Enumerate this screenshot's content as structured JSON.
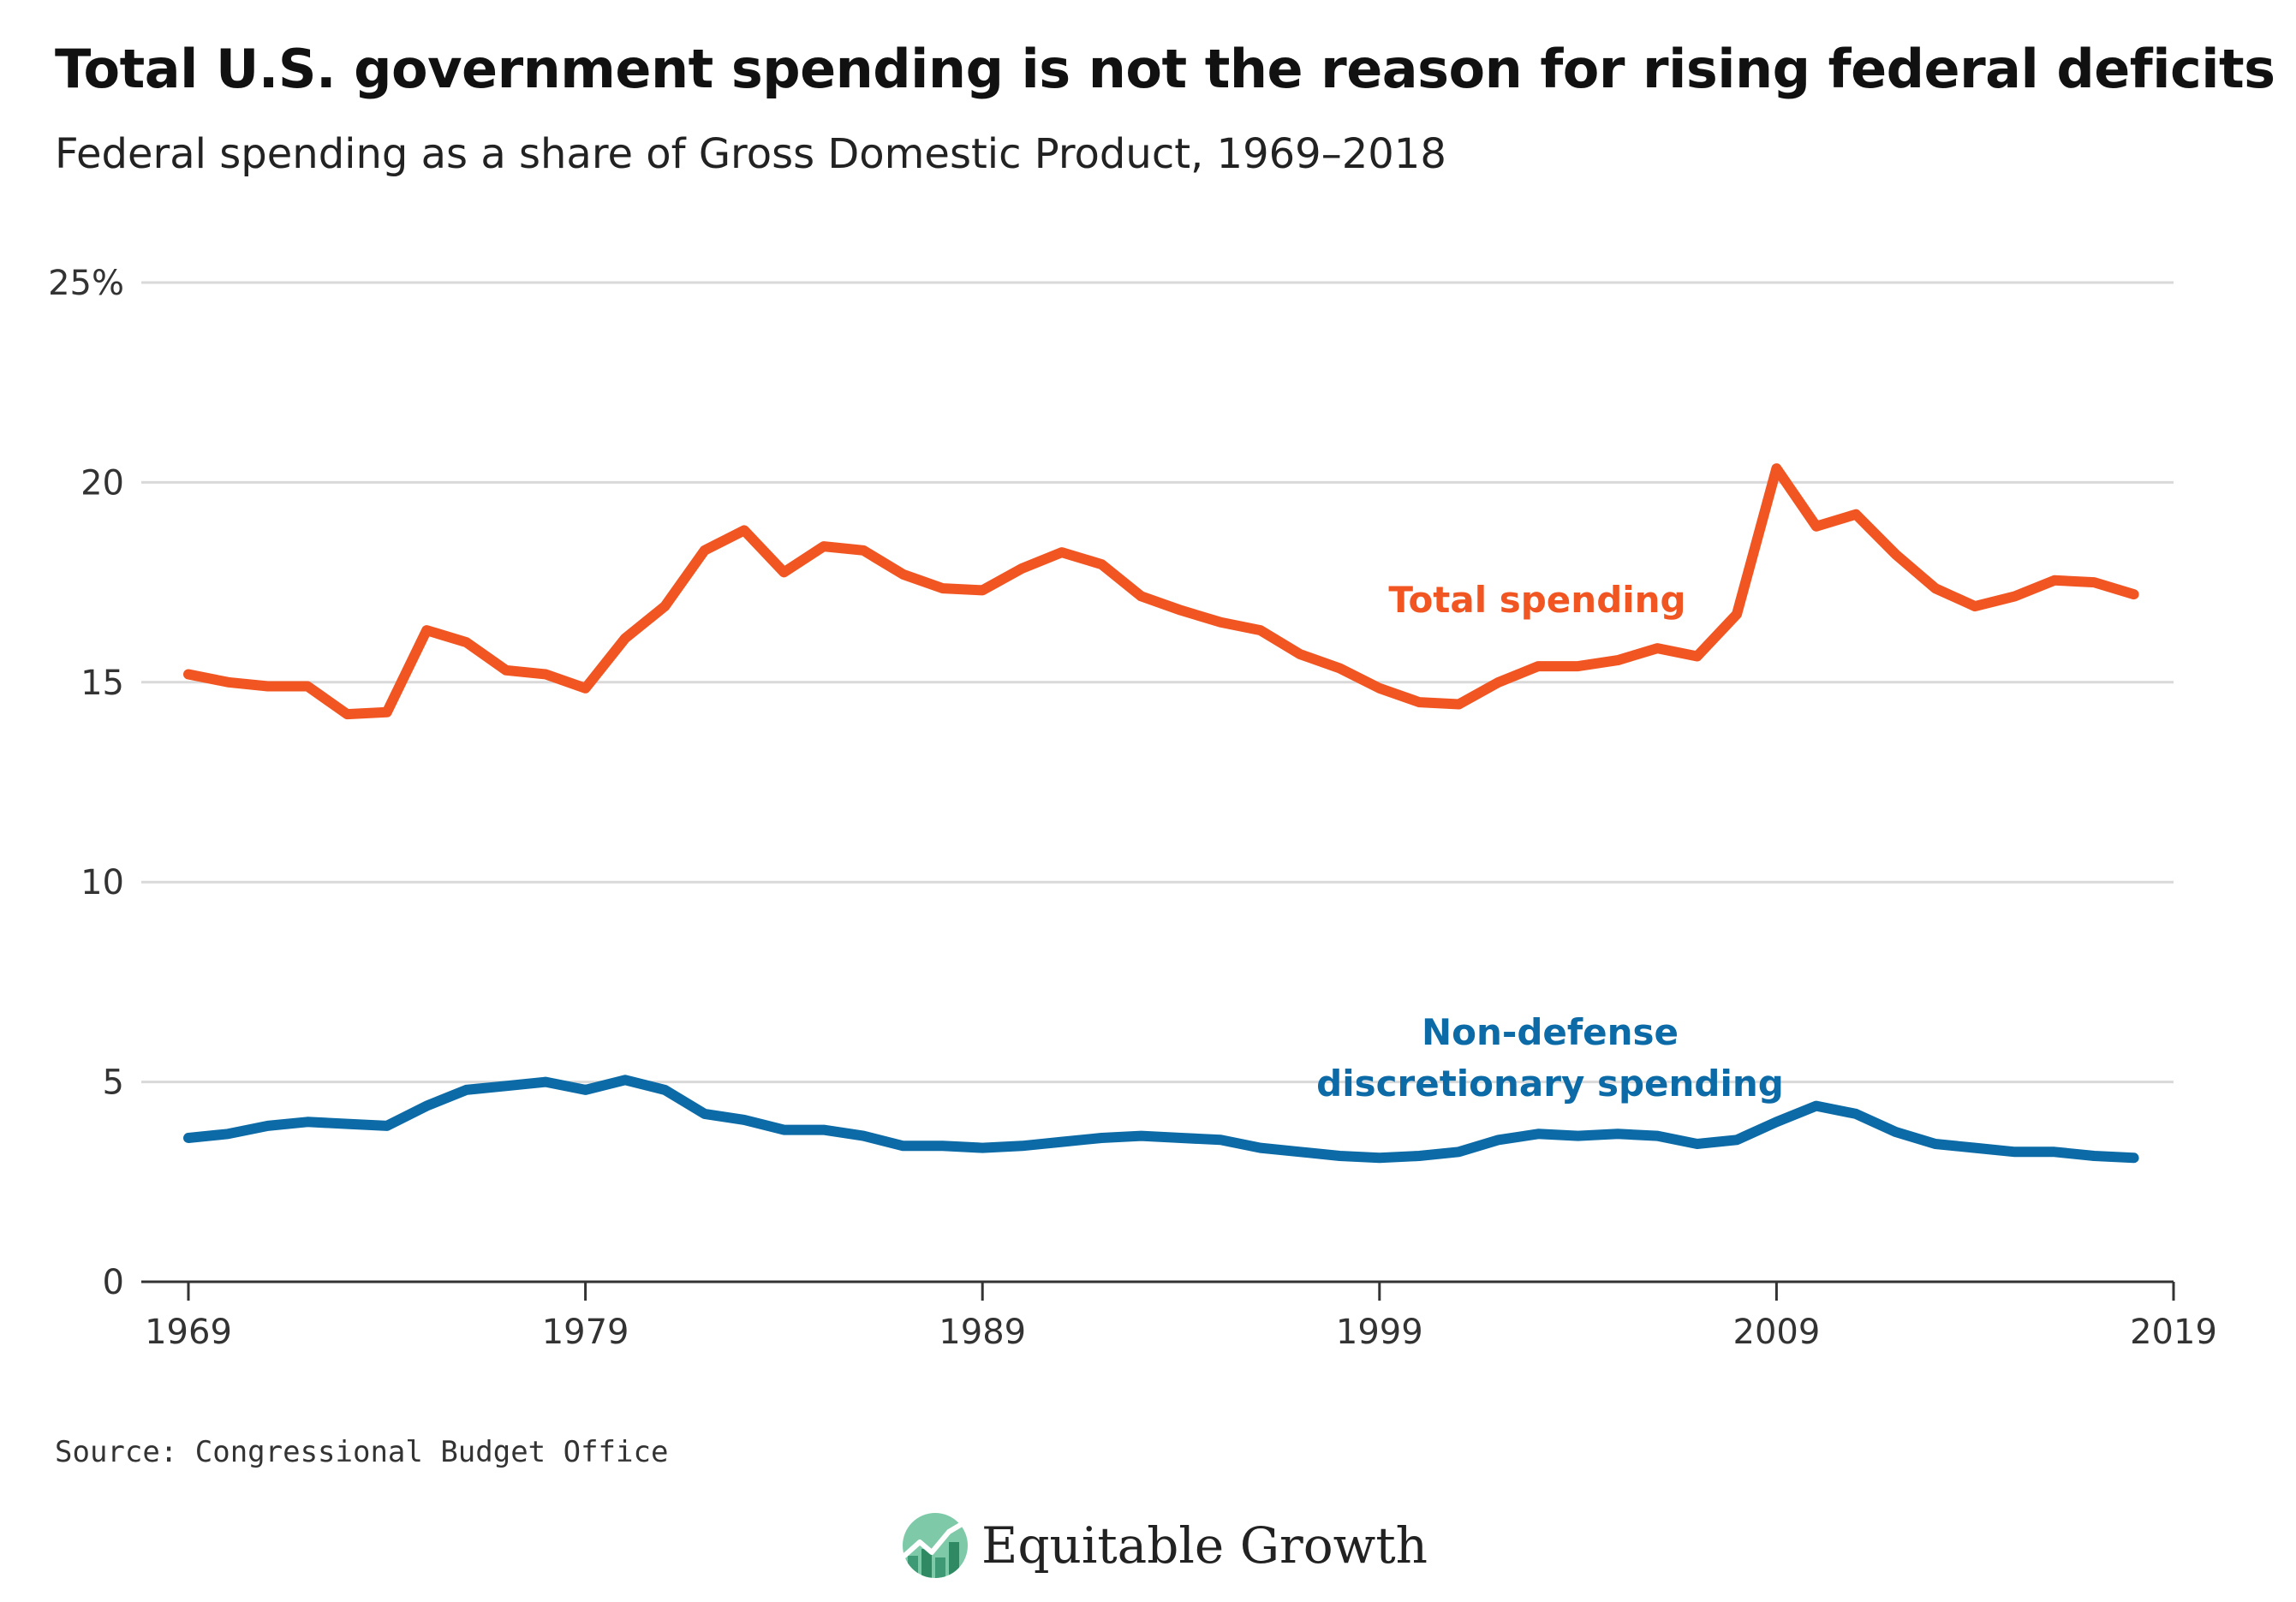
{
  "title": "Total U.S. government spending is not the reason for rising federal deficits",
  "subtitle": "Federal spending as a share of Gross Domestic Product, 1969–2018",
  "source": "Source: Congressional Budget Office",
  "logo": {
    "text": "Equitable Growth",
    "icon": "equitable-growth-logo-icon"
  },
  "colors": {
    "total": "#f15522",
    "nondefense": "#0c6aa6",
    "grid": "#d9d9d9",
    "axis": "#333333"
  },
  "chart_data": {
    "type": "line",
    "title": "Total U.S. government spending is not the reason for rising federal deficits",
    "subtitle": "Federal spending as a share of Gross Domestic Product, 1969–2018",
    "xlabel": "",
    "ylabel": "",
    "xlim": [
      1969,
      2019
    ],
    "ylim": [
      0,
      25
    ],
    "grid": true,
    "legend": "inline labels",
    "x_ticks": [
      1969,
      1979,
      1989,
      1999,
      2009,
      2019
    ],
    "y_ticks": [
      {
        "value": 0,
        "label": "0"
      },
      {
        "value": 5,
        "label": "5"
      },
      {
        "value": 10,
        "label": "10"
      },
      {
        "value": 15,
        "label": "15"
      },
      {
        "value": 20,
        "label": "20"
      },
      {
        "value": 25,
        "label": "25%"
      }
    ],
    "x": [
      1969,
      1970,
      1971,
      1972,
      1973,
      1974,
      1975,
      1976,
      1977,
      1978,
      1979,
      1980,
      1981,
      1982,
      1983,
      1984,
      1985,
      1986,
      1987,
      1988,
      1989,
      1990,
      1991,
      1992,
      1993,
      1994,
      1995,
      1996,
      1997,
      1998,
      1999,
      2000,
      2001,
      2002,
      2003,
      2004,
      2005,
      2006,
      2007,
      2008,
      2009,
      2010,
      2011,
      2012,
      2013,
      2014,
      2015,
      2016,
      2017,
      2018
    ],
    "series": [
      {
        "name": "Total spending",
        "label_lines": [
          "Total spending"
        ],
        "color": "#f15522",
        "values": [
          15.2,
          15.0,
          14.9,
          14.9,
          14.2,
          14.25,
          16.3,
          16.0,
          15.3,
          15.2,
          14.85,
          16.1,
          16.9,
          18.3,
          18.8,
          17.75,
          18.4,
          18.3,
          17.7,
          17.35,
          17.3,
          17.85,
          18.25,
          17.95,
          17.15,
          16.8,
          16.5,
          16.3,
          15.7,
          15.35,
          14.85,
          14.5,
          14.45,
          15.0,
          15.4,
          15.4,
          15.55,
          15.85,
          15.65,
          16.7,
          20.35,
          18.9,
          19.2,
          18.2,
          17.35,
          16.9,
          17.15,
          17.55,
          17.5,
          17.2
        ]
      },
      {
        "name": "Non-defense discretionary spending",
        "label_lines": [
          "Non-defense",
          "discretionary spending"
        ],
        "color": "#0c6aa6",
        "values": [
          3.6,
          3.7,
          3.9,
          4.0,
          3.95,
          3.9,
          4.4,
          4.8,
          4.9,
          5.0,
          4.8,
          5.05,
          4.8,
          4.2,
          4.05,
          3.8,
          3.8,
          3.65,
          3.4,
          3.4,
          3.35,
          3.4,
          3.5,
          3.6,
          3.65,
          3.6,
          3.55,
          3.35,
          3.25,
          3.15,
          3.1,
          3.15,
          3.25,
          3.55,
          3.7,
          3.65,
          3.7,
          3.65,
          3.45,
          3.55,
          4.0,
          4.4,
          4.2,
          3.75,
          3.45,
          3.35,
          3.25,
          3.25,
          3.15,
          3.1
        ]
      }
    ]
  }
}
